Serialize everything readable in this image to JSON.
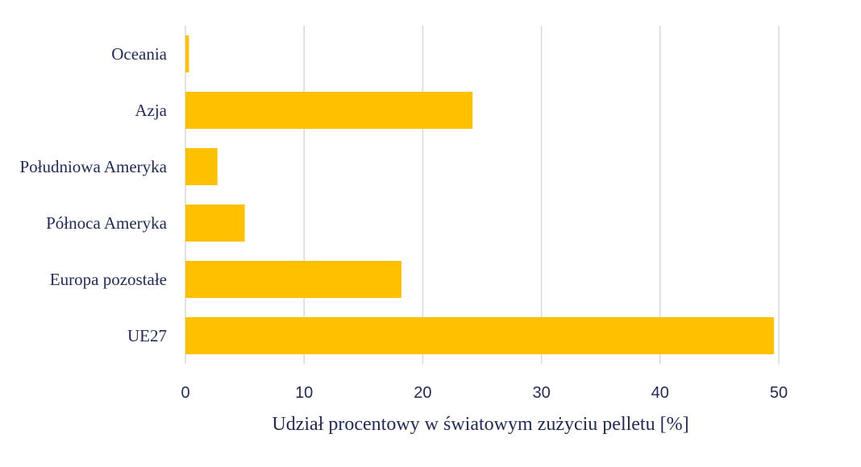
{
  "chart_data": {
    "type": "bar",
    "orientation": "horizontal",
    "categories": [
      "Oceania",
      "Azja",
      "Południowa Ameryka",
      "Północa Ameryka",
      "Europa pozostałe",
      "UE27"
    ],
    "values": [
      0.3,
      24.2,
      2.7,
      5.0,
      18.2,
      49.6
    ],
    "xlabel": "Udział procentowy w światowym zużyciu pelletu [%]",
    "ylabel": "",
    "xlim": [
      0,
      50
    ],
    "xticks": [
      0,
      10,
      20,
      30,
      40,
      50
    ],
    "grid": "vertical",
    "legend": "none"
  },
  "colors": {
    "bar": "#FFC000",
    "text": "#1F2A5A",
    "grid": "#D9D9D9"
  }
}
